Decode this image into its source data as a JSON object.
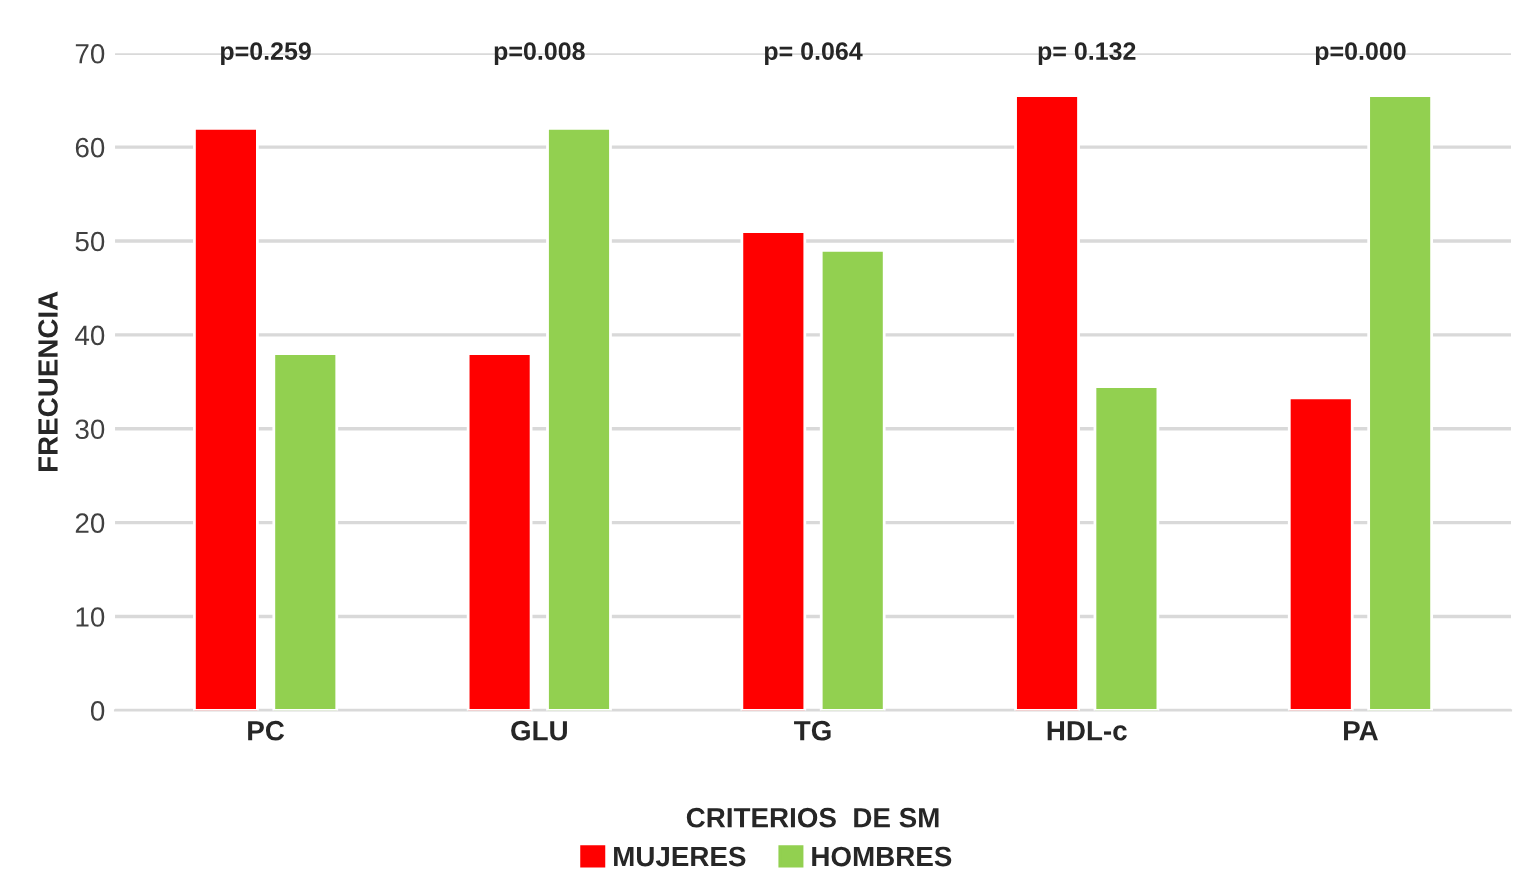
{
  "chart_data": {
    "type": "bar",
    "categories": [
      "PC",
      "GLU",
      "TG",
      "HDL-c",
      "PA"
    ],
    "series": [
      {
        "name": "MUJERES",
        "color": "#ff0000",
        "values": [
          62,
          38,
          51,
          65.5,
          33.3
        ]
      },
      {
        "name": "HOMBRES",
        "color": "#92d050",
        "values": [
          38,
          62,
          49,
          34.5,
          65.5
        ]
      }
    ],
    "xlabel": "CRITERIOS  DE SM",
    "ylabel": "FRECUENCIA",
    "ylim": [
      0,
      70
    ],
    "yticks": [
      0,
      10,
      20,
      30,
      40,
      50,
      60,
      70
    ],
    "grid": "y",
    "legend": "bottom",
    "annotations": [
      "p=0.259",
      "p=0.008",
      "p= 0.064",
      "p= 0.132",
      "p=0.000"
    ]
  }
}
